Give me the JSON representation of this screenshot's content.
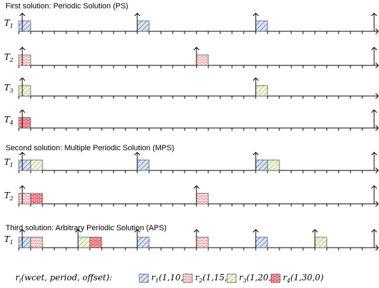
{
  "horizon": 30,
  "sections": [
    {
      "title": "First solution: Periodic Solution (PS)",
      "rows": [
        {
          "label": "T",
          "index": "1",
          "releases": [
            0,
            10,
            20,
            30
          ],
          "blocks": [
            {
              "task": 1,
              "start": 0
            },
            {
              "task": 1,
              "start": 10
            },
            {
              "task": 1,
              "start": 20
            }
          ]
        },
        {
          "label": "T",
          "index": "2",
          "releases": [
            0,
            15,
            30
          ],
          "blocks": [
            {
              "task": 2,
              "start": 0
            },
            {
              "task": 2,
              "start": 15
            }
          ]
        },
        {
          "label": "T",
          "index": "3",
          "releases": [
            0,
            20
          ],
          "blocks": [
            {
              "task": 3,
              "start": 0
            },
            {
              "task": 3,
              "start": 20
            }
          ]
        },
        {
          "label": "T",
          "index": "4",
          "releases": [
            0,
            30
          ],
          "blocks": [
            {
              "task": 4,
              "start": 0
            }
          ]
        }
      ]
    },
    {
      "title": "Second solution: Multiple Periodic Solution (MPS)",
      "rows": [
        {
          "label": "T",
          "index": "1",
          "releases": [
            0,
            10,
            20,
            30
          ],
          "blocks": [
            {
              "task": 1,
              "start": 0
            },
            {
              "task": 3,
              "start": 1
            },
            {
              "task": 1,
              "start": 10
            },
            {
              "task": 1,
              "start": 20
            },
            {
              "task": 3,
              "start": 21
            }
          ]
        },
        {
          "label": "T",
          "index": "2",
          "releases": [
            0,
            15,
            30
          ],
          "blocks": [
            {
              "task": 2,
              "start": 0
            },
            {
              "task": 4,
              "start": 1
            },
            {
              "task": 2,
              "start": 15
            }
          ]
        }
      ]
    },
    {
      "title": "Third solution: Arbitrary Periodic Solution (APS)",
      "rows": [
        {
          "label": "T",
          "index": "1",
          "releases": [
            0,
            5,
            10,
            15,
            20,
            25,
            30
          ],
          "blocks": [
            {
              "task": 1,
              "start": 0
            },
            {
              "task": 2,
              "start": 1
            },
            {
              "task": 3,
              "start": 5
            },
            {
              "task": 4,
              "start": 6
            },
            {
              "task": 1,
              "start": 10
            },
            {
              "task": 2,
              "start": 15
            },
            {
              "task": 1,
              "start": 20
            },
            {
              "task": 3,
              "start": 25
            }
          ]
        }
      ]
    }
  ],
  "legend": {
    "symbol": "r",
    "index": "i",
    "params": "(wcet, period, offset):",
    "items": [
      {
        "task": 1,
        "symbol": "r",
        "index": "1",
        "params": "(1,10,0)"
      },
      {
        "task": 2,
        "symbol": "r",
        "index": "2",
        "params": "(1,15,0)"
      },
      {
        "task": 3,
        "symbol": "r",
        "index": "3",
        "params": "(1,20,0)"
      },
      {
        "task": 4,
        "symbol": "r",
        "index": "4",
        "params": "(1,30,0)"
      }
    ]
  }
}
